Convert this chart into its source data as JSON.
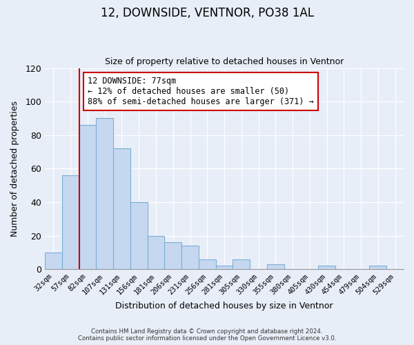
{
  "title": "12, DOWNSIDE, VENTNOR, PO38 1AL",
  "subtitle": "Size of property relative to detached houses in Ventnor",
  "xlabel": "Distribution of detached houses by size in Ventnor",
  "ylabel": "Number of detached properties",
  "bar_labels": [
    "32sqm",
    "57sqm",
    "82sqm",
    "107sqm",
    "131sqm",
    "156sqm",
    "181sqm",
    "206sqm",
    "231sqm",
    "256sqm",
    "281sqm",
    "305sqm",
    "330sqm",
    "355sqm",
    "380sqm",
    "405sqm",
    "430sqm",
    "454sqm",
    "479sqm",
    "504sqm",
    "529sqm"
  ],
  "bar_values": [
    10,
    56,
    86,
    90,
    72,
    40,
    20,
    16,
    14,
    6,
    2,
    6,
    0,
    3,
    0,
    0,
    2,
    0,
    0,
    2,
    0
  ],
  "bar_color": "#c5d8f0",
  "bar_edge_color": "#7bafd4",
  "ylim": [
    0,
    120
  ],
  "yticks": [
    0,
    20,
    40,
    60,
    80,
    100,
    120
  ],
  "vline_color": "#cc0000",
  "annotation_text": "12 DOWNSIDE: 77sqm\n← 12% of detached houses are smaller (50)\n88% of semi-detached houses are larger (371) →",
  "annotation_box_color": "#ffffff",
  "annotation_box_edge": "#cc0000",
  "footer_line1": "Contains HM Land Registry data © Crown copyright and database right 2024.",
  "footer_line2": "Contains public sector information licensed under the Open Government Licence v3.0.",
  "background_color": "#e8eef8",
  "grid_color": "#ffffff",
  "title_fontsize": 12,
  "subtitle_fontsize": 9,
  "ylabel_fontsize": 9,
  "xlabel_fontsize": 9
}
